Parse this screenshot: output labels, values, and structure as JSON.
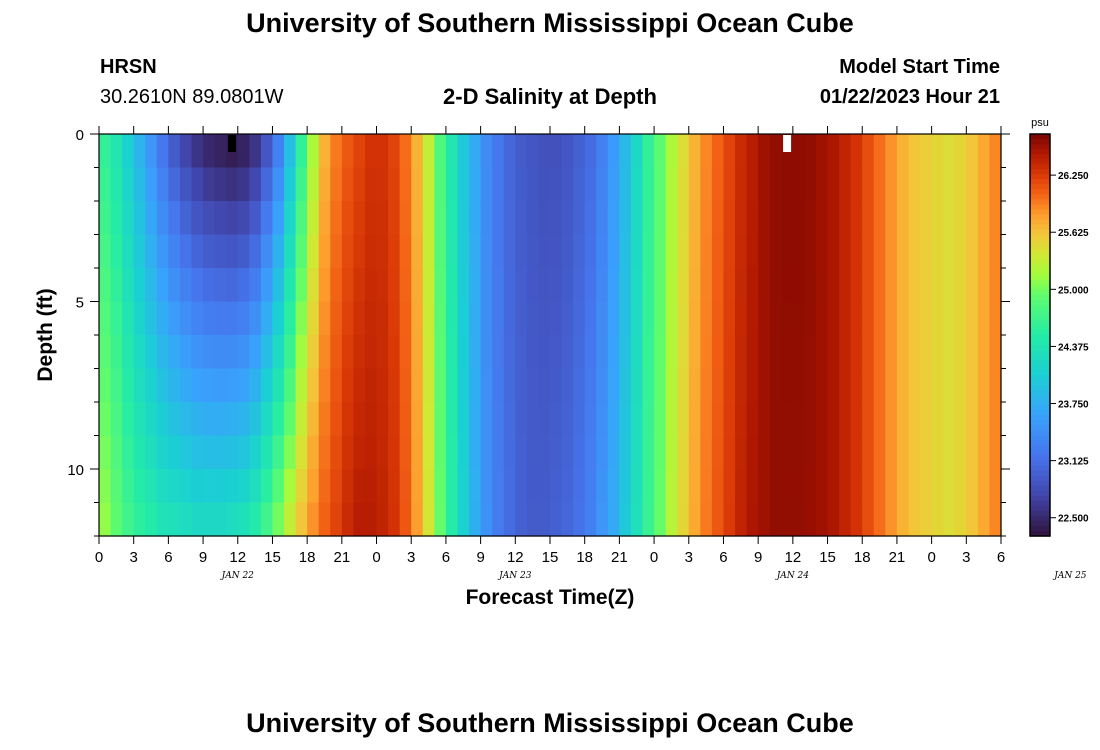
{
  "header": {
    "title": "University of Southern Mississippi Ocean Cube",
    "station_name": "HRSN",
    "station_coords": "30.2610N  89.0801W",
    "model_start_label": "Model Start Time",
    "model_start_value": "01/22/2023 Hour 21"
  },
  "footer": {
    "title": "University of Southern Mississippi Ocean Cube"
  },
  "chart_data": {
    "type": "heatmap",
    "title": "2-D Salinity at Depth",
    "xlabel": "Forecast Time(Z)",
    "ylabel": "Depth (ft)",
    "x_tick_labels": [
      "0",
      "3",
      "6",
      "9",
      "12",
      "15",
      "18",
      "21",
      "0",
      "3",
      "6",
      "9",
      "12",
      "15",
      "18",
      "21",
      "0",
      "3",
      "6",
      "9",
      "12",
      "15",
      "18",
      "21",
      "0",
      "3",
      "6"
    ],
    "day_labels": [
      {
        "label": "JAN 22",
        "hour": 12
      },
      {
        "label": "JAN 23",
        "hour": 36
      },
      {
        "label": "JAN 24",
        "hour": 60
      },
      {
        "label": "JAN 25",
        "hour": 84
      }
    ],
    "xlim_hours": [
      0,
      78
    ],
    "y_ticks": [
      0,
      5,
      10
    ],
    "ylim_ft": [
      0,
      12
    ],
    "depth_levels_ft": [
      0.5,
      1.5,
      2.5,
      3.5,
      4.5,
      5.5,
      6.5,
      7.5,
      8.5,
      9.5,
      10.5,
      11.5
    ],
    "colorbar": {
      "unit": "psu",
      "range": [
        22.3,
        26.7
      ],
      "tick_labels": [
        "26.250",
        "25.625",
        "25.000",
        "24.375",
        "23.750",
        "23.125",
        "22.500"
      ],
      "tick_values": [
        26.25,
        25.625,
        25.0,
        24.375,
        23.75,
        23.125,
        22.5
      ]
    },
    "surface_salinity_by_hour": [
      {
        "h": 0,
        "v": 24.6
      },
      {
        "h": 1,
        "v": 24.4
      },
      {
        "h": 2,
        "v": 24.1
      },
      {
        "h": 3,
        "v": 23.8
      },
      {
        "h": 4,
        "v": 23.5
      },
      {
        "h": 5,
        "v": 23.2
      },
      {
        "h": 6,
        "v": 22.95
      },
      {
        "h": 7,
        "v": 22.75
      },
      {
        "h": 8,
        "v": 22.6
      },
      {
        "h": 9,
        "v": 22.5
      },
      {
        "h": 10,
        "v": 22.45
      },
      {
        "h": 11,
        "v": 22.4
      },
      {
        "h": 12,
        "v": 22.45
      },
      {
        "h": 13,
        "v": 22.6
      },
      {
        "h": 14,
        "v": 22.9
      },
      {
        "h": 15,
        "v": 23.3
      },
      {
        "h": 16,
        "v": 23.9
      },
      {
        "h": 17,
        "v": 24.6
      },
      {
        "h": 18,
        "v": 25.2
      },
      {
        "h": 19,
        "v": 25.7
      },
      {
        "h": 20,
        "v": 25.95
      },
      {
        "h": 21,
        "v": 26.1
      },
      {
        "h": 22,
        "v": 26.2
      },
      {
        "h": 23,
        "v": 26.3
      },
      {
        "h": 24,
        "v": 26.3
      },
      {
        "h": 25,
        "v": 26.2
      },
      {
        "h": 26,
        "v": 26.0
      },
      {
        "h": 27,
        "v": 25.7
      },
      {
        "h": 28,
        "v": 25.3
      },
      {
        "h": 29,
        "v": 24.8
      },
      {
        "h": 30,
        "v": 24.4
      },
      {
        "h": 31,
        "v": 24.0
      },
      {
        "h": 32,
        "v": 23.7
      },
      {
        "h": 33,
        "v": 23.4
      },
      {
        "h": 34,
        "v": 23.2
      },
      {
        "h": 35,
        "v": 23.05
      },
      {
        "h": 36,
        "v": 22.95
      },
      {
        "h": 37,
        "v": 22.9
      },
      {
        "h": 38,
        "v": 22.85
      },
      {
        "h": 39,
        "v": 22.85
      },
      {
        "h": 40,
        "v": 22.9
      },
      {
        "h": 41,
        "v": 23.0
      },
      {
        "h": 42,
        "v": 23.1
      },
      {
        "h": 43,
        "v": 23.3
      },
      {
        "h": 44,
        "v": 23.55
      },
      {
        "h": 45,
        "v": 23.85
      },
      {
        "h": 46,
        "v": 24.2
      },
      {
        "h": 47,
        "v": 24.6
      },
      {
        "h": 48,
        "v": 24.9
      },
      {
        "h": 49,
        "v": 25.2
      },
      {
        "h": 50,
        "v": 25.45
      },
      {
        "h": 51,
        "v": 25.7
      },
      {
        "h": 52,
        "v": 25.9
      },
      {
        "h": 53,
        "v": 26.05
      },
      {
        "h": 54,
        "v": 26.2
      },
      {
        "h": 55,
        "v": 26.35
      },
      {
        "h": 56,
        "v": 26.45
      },
      {
        "h": 57,
        "v": 26.55
      },
      {
        "h": 58,
        "v": 26.6
      },
      {
        "h": 59,
        "v": 26.62
      },
      {
        "h": 60,
        "v": 26.62
      },
      {
        "h": 61,
        "v": 26.6
      },
      {
        "h": 62,
        "v": 26.55
      },
      {
        "h": 63,
        "v": 26.5
      },
      {
        "h": 64,
        "v": 26.4
      },
      {
        "h": 65,
        "v": 26.3
      },
      {
        "h": 66,
        "v": 26.15
      },
      {
        "h": 67,
        "v": 26.0
      },
      {
        "h": 68,
        "v": 25.85
      },
      {
        "h": 69,
        "v": 25.7
      },
      {
        "h": 70,
        "v": 25.6
      },
      {
        "h": 71,
        "v": 25.55
      },
      {
        "h": 72,
        "v": 25.5
      },
      {
        "h": 73,
        "v": 25.45
      },
      {
        "h": 74,
        "v": 25.5
      },
      {
        "h": 75,
        "v": 25.6
      },
      {
        "h": 76,
        "v": 25.75
      },
      {
        "h": 77,
        "v": 25.9
      }
    ],
    "bottom_salinity_by_hour": [
      {
        "h": 0,
        "v": 25.1
      },
      {
        "h": 1,
        "v": 24.9
      },
      {
        "h": 2,
        "v": 24.7
      },
      {
        "h": 3,
        "v": 24.55
      },
      {
        "h": 4,
        "v": 24.45
      },
      {
        "h": 5,
        "v": 24.35
      },
      {
        "h": 6,
        "v": 24.3
      },
      {
        "h": 7,
        "v": 24.25
      },
      {
        "h": 8,
        "v": 24.2
      },
      {
        "h": 9,
        "v": 24.2
      },
      {
        "h": 10,
        "v": 24.2
      },
      {
        "h": 11,
        "v": 24.25
      },
      {
        "h": 12,
        "v": 24.3
      },
      {
        "h": 13,
        "v": 24.45
      },
      {
        "h": 14,
        "v": 24.7
      },
      {
        "h": 15,
        "v": 25.0
      },
      {
        "h": 16,
        "v": 25.3
      },
      {
        "h": 17,
        "v": 25.6
      },
      {
        "h": 18,
        "v": 25.85
      },
      {
        "h": 19,
        "v": 26.05
      },
      {
        "h": 20,
        "v": 26.2
      },
      {
        "h": 21,
        "v": 26.35
      },
      {
        "h": 22,
        "v": 26.45
      },
      {
        "h": 23,
        "v": 26.45
      },
      {
        "h": 24,
        "v": 26.4
      },
      {
        "h": 25,
        "v": 26.3
      },
      {
        "h": 26,
        "v": 26.1
      },
      {
        "h": 27,
        "v": 25.8
      },
      {
        "h": 28,
        "v": 25.4
      },
      {
        "h": 29,
        "v": 24.95
      },
      {
        "h": 30,
        "v": 24.5
      },
      {
        "h": 31,
        "v": 24.1
      },
      {
        "h": 32,
        "v": 23.75
      },
      {
        "h": 33,
        "v": 23.45
      },
      {
        "h": 34,
        "v": 23.25
      },
      {
        "h": 35,
        "v": 23.1
      },
      {
        "h": 36,
        "v": 23.0
      },
      {
        "h": 37,
        "v": 22.95
      },
      {
        "h": 38,
        "v": 22.95
      },
      {
        "h": 39,
        "v": 23.0
      },
      {
        "h": 40,
        "v": 23.05
      },
      {
        "h": 41,
        "v": 23.15
      },
      {
        "h": 42,
        "v": 23.3
      },
      {
        "h": 43,
        "v": 23.5
      },
      {
        "h": 44,
        "v": 23.7
      },
      {
        "h": 45,
        "v": 24.0
      },
      {
        "h": 46,
        "v": 24.3
      },
      {
        "h": 47,
        "v": 24.65
      },
      {
        "h": 48,
        "v": 24.95
      },
      {
        "h": 49,
        "v": 25.25
      },
      {
        "h": 50,
        "v": 25.5
      },
      {
        "h": 51,
        "v": 25.75
      },
      {
        "h": 52,
        "v": 25.95
      },
      {
        "h": 53,
        "v": 26.1
      },
      {
        "h": 54,
        "v": 26.25
      },
      {
        "h": 55,
        "v": 26.4
      },
      {
        "h": 56,
        "v": 26.5
      },
      {
        "h": 57,
        "v": 26.55
      },
      {
        "h": 58,
        "v": 26.6
      },
      {
        "h": 59,
        "v": 26.6
      },
      {
        "h": 60,
        "v": 26.6
      },
      {
        "h": 61,
        "v": 26.58
      },
      {
        "h": 62,
        "v": 26.55
      },
      {
        "h": 63,
        "v": 26.5
      },
      {
        "h": 64,
        "v": 26.4
      },
      {
        "h": 65,
        "v": 26.3
      },
      {
        "h": 66,
        "v": 26.15
      },
      {
        "h": 67,
        "v": 26.0
      },
      {
        "h": 68,
        "v": 25.85
      },
      {
        "h": 69,
        "v": 25.7
      },
      {
        "h": 70,
        "v": 25.6
      },
      {
        "h": 71,
        "v": 25.55
      },
      {
        "h": 72,
        "v": 25.5
      },
      {
        "h": 73,
        "v": 25.45
      },
      {
        "h": 74,
        "v": 25.5
      },
      {
        "h": 75,
        "v": 25.6
      },
      {
        "h": 76,
        "v": 25.75
      },
      {
        "h": 77,
        "v": 25.9
      }
    ],
    "min_marker": {
      "hour": 11.5,
      "depth_ft": 0.25,
      "color": "#000000"
    },
    "max_marker": {
      "hour": 59.5,
      "depth_ft": 0.25,
      "color": "#ffffff"
    }
  }
}
